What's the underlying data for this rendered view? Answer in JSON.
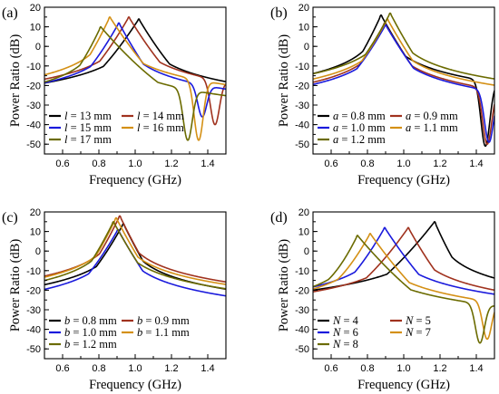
{
  "chart_data": [
    {
      "panel": "(a)",
      "type": "line",
      "xlabel": "Frequency (GHz)",
      "ylabel": "Power Ratio (dB)",
      "xlim": [
        0.5,
        1.5
      ],
      "ylim": [
        -55,
        20
      ],
      "xticks": [
        "0.6",
        "0.8",
        "1.0",
        "1.2",
        "1.4"
      ],
      "yticks": [
        "20",
        "10",
        "0",
        "-10",
        "-20",
        "-30",
        "-40",
        "-50"
      ],
      "legend_param": "l",
      "legend_unit": "mm",
      "legend_placement": "bottom-left",
      "series": [
        {
          "name": "13",
          "color": "#000000",
          "f0": 1.02,
          "peak": 14,
          "left": -30,
          "right": -30,
          "dip_f": null,
          "dip_v": null
        },
        {
          "name": "14",
          "color": "#a0321e",
          "f0": 0.965,
          "peak": 15,
          "left": -29,
          "right": -33,
          "dip_f": 1.44,
          "dip_v": -40
        },
        {
          "name": "15",
          "color": "#1a1adc",
          "f0": 0.91,
          "peak": 12,
          "left": -28,
          "right": -47,
          "dip_f": 1.37,
          "dip_v": -36
        },
        {
          "name": "16",
          "color": "#d49015",
          "f0": 0.86,
          "peak": 15,
          "left": -27,
          "right": -39,
          "dip_f": 1.35,
          "dip_v": -48
        },
        {
          "name": "17",
          "color": "#6b6b00",
          "f0": 0.81,
          "peak": 10,
          "left": -26,
          "right": -34,
          "dip_f": 1.29,
          "dip_v": -48
        }
      ]
    },
    {
      "panel": "(b)",
      "type": "line",
      "xlabel": "Frequency (GHz)",
      "ylabel": "Power Ratio (dB)",
      "xlim": [
        0.5,
        1.5
      ],
      "ylim": [
        -55,
        20
      ],
      "xticks": [
        "0.6",
        "0.8",
        "1.0",
        "1.2",
        "1.4"
      ],
      "yticks": [
        "20",
        "10",
        "0",
        "-10",
        "-20",
        "-30",
        "-40",
        "-50"
      ],
      "legend_param": "a",
      "legend_unit": "mm",
      "legend_placement": "bottom-left",
      "series": [
        {
          "name": "0.8",
          "color": "#000000",
          "f0": 0.875,
          "peak": 16,
          "left": -29,
          "right": -46,
          "dip_f": 1.45,
          "dip_v": -51
        },
        {
          "name": "0.9",
          "color": "#a0321e",
          "f0": 0.895,
          "peak": 12,
          "left": -29,
          "right": -45,
          "dip_f": 1.46,
          "dip_v": -50
        },
        {
          "name": "1.0",
          "color": "#1a1adc",
          "f0": 0.9,
          "peak": 11,
          "left": -28,
          "right": -45,
          "dip_f": 1.47,
          "dip_v": -49
        },
        {
          "name": "1.1",
          "color": "#d49015",
          "f0": 0.91,
          "peak": 14,
          "left": -28,
          "right": -44,
          "dip_f": null,
          "dip_v": null
        },
        {
          "name": "1.2",
          "color": "#6b6b00",
          "f0": 0.925,
          "peak": 17,
          "left": -27,
          "right": -43,
          "dip_f": null,
          "dip_v": null
        }
      ]
    },
    {
      "panel": "(c)",
      "type": "line",
      "xlabel": "Frequency (GHz)",
      "ylabel": "Power Ratio (dB)",
      "xlim": [
        0.5,
        1.5
      ],
      "ylim": [
        -55,
        20
      ],
      "xticks": [
        "0.6",
        "0.8",
        "1.0",
        "1.2",
        "1.4"
      ],
      "yticks": [
        "20",
        "10",
        "0",
        "-10",
        "-20",
        "-30",
        "-40",
        "-50"
      ],
      "legend_param": "b",
      "legend_unit": "mm",
      "legend_placement": "bottom-left",
      "series": [
        {
          "name": "0.8",
          "color": "#000000",
          "f0": 0.935,
          "peak": 14,
          "left": -29,
          "right": -49,
          "dip_f": null,
          "dip_v": null
        },
        {
          "name": "0.9",
          "color": "#a0321e",
          "f0": 0.915,
          "peak": 18,
          "left": -29,
          "right": -48,
          "dip_f": null,
          "dip_v": null
        },
        {
          "name": "1.0",
          "color": "#1a1adc",
          "f0": 0.905,
          "peak": 11,
          "left": -28,
          "right": -48,
          "dip_f": null,
          "dip_v": null
        },
        {
          "name": "1.1",
          "color": "#d49015",
          "f0": 0.895,
          "peak": 17,
          "left": -28,
          "right": -47,
          "dip_f": null,
          "dip_v": null
        },
        {
          "name": "1.2",
          "color": "#6b6b00",
          "f0": 0.88,
          "peak": 15,
          "left": -27,
          "right": -47,
          "dip_f": null,
          "dip_v": null
        }
      ]
    },
    {
      "panel": "(d)",
      "type": "line",
      "xlabel": "Frequency (GHz)",
      "ylabel": "Power Ratio (dB)",
      "xlim": [
        0.5,
        1.5
      ],
      "ylim": [
        -55,
        20
      ],
      "xticks": [
        "0.6",
        "0.8",
        "1.0",
        "1.2",
        "1.4"
      ],
      "yticks": [
        "20",
        "10",
        "0",
        "-10",
        "-20",
        "-30",
        "-40",
        "-50"
      ],
      "legend_param": "N",
      "legend_unit": "",
      "legend_placement": "bottom-left",
      "series": [
        {
          "name": "4",
          "color": "#000000",
          "f0": 1.17,
          "peak": 15,
          "left": -32,
          "right": -26,
          "dip_f": null,
          "dip_v": null
        },
        {
          "name": "5",
          "color": "#a0321e",
          "f0": 1.025,
          "peak": 12,
          "left": -29,
          "right": -35,
          "dip_f": null,
          "dip_v": null
        },
        {
          "name": "6",
          "color": "#1a1adc",
          "f0": 0.895,
          "peak": 12,
          "left": -26,
          "right": -39,
          "dip_f": null,
          "dip_v": null
        },
        {
          "name": "7",
          "color": "#d49015",
          "f0": 0.815,
          "peak": 9,
          "left": -22,
          "right": -44,
          "dip_f": 1.46,
          "dip_v": -45
        },
        {
          "name": "8",
          "color": "#6b6b00",
          "f0": 0.745,
          "peak": 8,
          "left": -19,
          "right": -41,
          "dip_f": 1.42,
          "dip_v": -47
        }
      ]
    }
  ]
}
